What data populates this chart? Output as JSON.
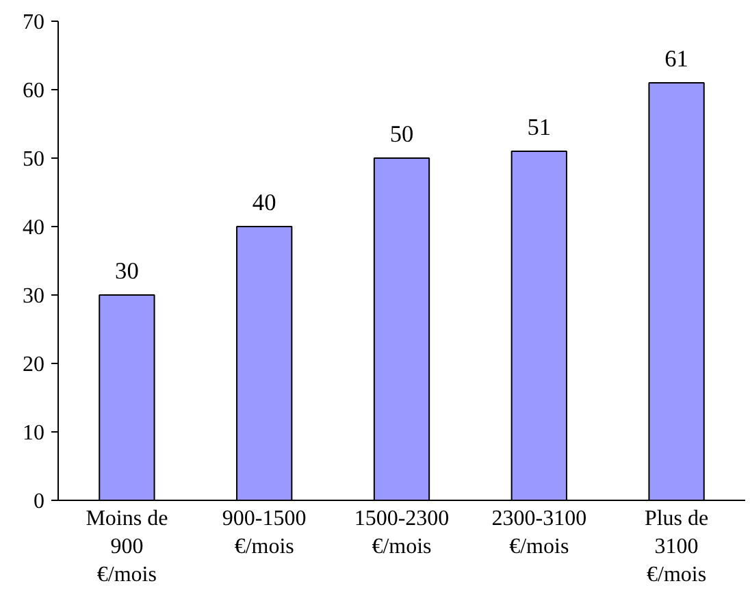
{
  "chart_data": {
    "type": "bar",
    "categories": [
      "Moins de 900 €/mois",
      "900-1500 €/mois",
      "1500-2300 €/mois",
      "2300-3100 €/mois",
      "Plus de 3100 €/mois"
    ],
    "values": [
      30,
      40,
      50,
      51,
      61
    ],
    "color": "#9999ff",
    "ylim": [
      0,
      70
    ],
    "yticks": [
      0,
      10,
      20,
      30,
      40,
      50,
      60,
      70
    ],
    "data_labels": true,
    "grid": false
  }
}
